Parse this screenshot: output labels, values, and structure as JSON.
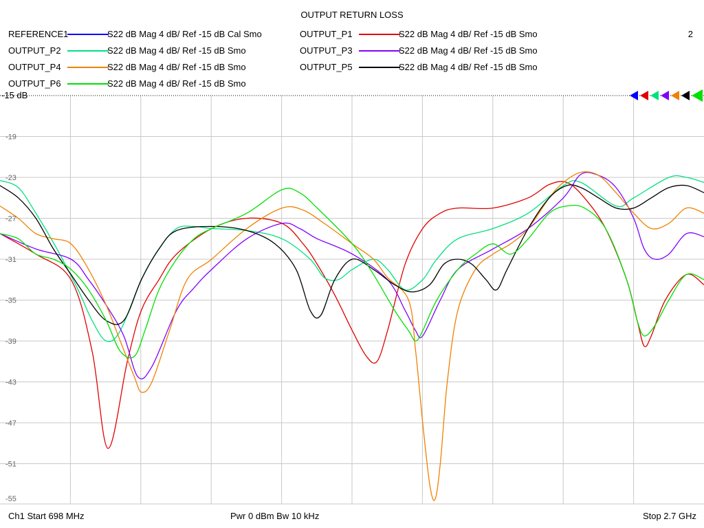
{
  "chart_data": {
    "type": "line",
    "title": "OUTPUT RETURN LOSS",
    "channel_number": "2",
    "ref_label": "-15 dB",
    "y_tick_labels": [
      "-19",
      "-23",
      "-27",
      "-31",
      "-35",
      "-39",
      "-43",
      "-47",
      "-51",
      "-55"
    ],
    "y_ticks": [
      -19,
      -23,
      -27,
      -31,
      -35,
      -39,
      -43,
      -47,
      -51,
      -55
    ],
    "ylim": [
      -55.5,
      -15
    ],
    "xlim": [
      698,
      2700
    ],
    "x_unit": "MHz",
    "grid": true,
    "series": [
      {
        "name": "REFERENCE1",
        "desc": "S22  dB Mag  4 dB/ Ref -15 dB  Cal Smo",
        "color": "#0000ff",
        "points": []
      },
      {
        "name": "OUTPUT_P1",
        "desc": "S22  dB Mag  4 dB/ Ref -15 dB  Smo",
        "color": "#e00000",
        "points": [
          [
            698,
            -28.5
          ],
          [
            800,
            -30.5
          ],
          [
            900,
            -33
          ],
          [
            960,
            -40
          ],
          [
            1005,
            -49.5
          ],
          [
            1060,
            -41
          ],
          [
            1100,
            -36
          ],
          [
            1150,
            -33
          ],
          [
            1200,
            -30.5
          ],
          [
            1300,
            -28
          ],
          [
            1400,
            -27
          ],
          [
            1500,
            -27.5
          ],
          [
            1560,
            -29.5
          ],
          [
            1600,
            -31.5
          ],
          [
            1650,
            -34.5
          ],
          [
            1700,
            -38
          ],
          [
            1740,
            -40.5
          ],
          [
            1770,
            -41
          ],
          [
            1800,
            -38
          ],
          [
            1850,
            -31.5
          ],
          [
            1900,
            -28
          ],
          [
            1950,
            -26.5
          ],
          [
            2000,
            -26
          ],
          [
            2100,
            -26
          ],
          [
            2200,
            -25
          ],
          [
            2260,
            -23.7
          ],
          [
            2310,
            -23.5
          ],
          [
            2360,
            -25
          ],
          [
            2420,
            -28
          ],
          [
            2480,
            -33
          ],
          [
            2510,
            -37
          ],
          [
            2530,
            -39.5
          ],
          [
            2550,
            -38.5
          ],
          [
            2590,
            -35
          ],
          [
            2650,
            -32.5
          ],
          [
            2700,
            -33.5
          ]
        ]
      },
      {
        "name": "OUTPUT_P2",
        "desc": "S22  dB Mag  4 dB/ Ref -15 dB  Smo",
        "color": "#00e080",
        "points": [
          [
            698,
            -23.3
          ],
          [
            750,
            -24
          ],
          [
            800,
            -26.5
          ],
          [
            860,
            -30
          ],
          [
            920,
            -34
          ],
          [
            960,
            -37
          ],
          [
            1000,
            -39
          ],
          [
            1040,
            -38
          ],
          [
            1100,
            -33
          ],
          [
            1150,
            -30
          ],
          [
            1200,
            -28
          ],
          [
            1250,
            -27.8
          ],
          [
            1300,
            -28
          ],
          [
            1400,
            -28.2
          ],
          [
            1500,
            -29
          ],
          [
            1580,
            -31
          ],
          [
            1620,
            -32.8
          ],
          [
            1660,
            -33
          ],
          [
            1700,
            -32
          ],
          [
            1760,
            -31
          ],
          [
            1800,
            -32
          ],
          [
            1850,
            -34
          ],
          [
            1900,
            -33
          ],
          [
            1940,
            -31
          ],
          [
            2000,
            -29
          ],
          [
            2100,
            -28
          ],
          [
            2200,
            -26.5
          ],
          [
            2300,
            -23.8
          ],
          [
            2350,
            -23.5
          ],
          [
            2450,
            -25.8
          ],
          [
            2500,
            -25
          ],
          [
            2600,
            -23
          ],
          [
            2650,
            -23
          ],
          [
            2700,
            -23.5
          ]
        ]
      },
      {
        "name": "OUTPUT_P3",
        "desc": "S22  dB Mag  4 dB/ Ref -15 dB  Smo",
        "color": "#8000ff",
        "points": [
          [
            698,
            -28.5
          ],
          [
            800,
            -30
          ],
          [
            900,
            -31
          ],
          [
            950,
            -33
          ],
          [
            1000,
            -35.5
          ],
          [
            1050,
            -38.5
          ],
          [
            1090,
            -42.5
          ],
          [
            1130,
            -41.5
          ],
          [
            1200,
            -36
          ],
          [
            1250,
            -33.8
          ],
          [
            1300,
            -32
          ],
          [
            1400,
            -29
          ],
          [
            1500,
            -27.5
          ],
          [
            1550,
            -28
          ],
          [
            1600,
            -29
          ],
          [
            1700,
            -30.5
          ],
          [
            1800,
            -33
          ],
          [
            1850,
            -36
          ],
          [
            1880,
            -38
          ],
          [
            1900,
            -38.5
          ],
          [
            1950,
            -35
          ],
          [
            2000,
            -32
          ],
          [
            2100,
            -30
          ],
          [
            2200,
            -28
          ],
          [
            2300,
            -25
          ],
          [
            2350,
            -22.7
          ],
          [
            2400,
            -22.8
          ],
          [
            2450,
            -24
          ],
          [
            2500,
            -27
          ],
          [
            2530,
            -30
          ],
          [
            2560,
            -31
          ],
          [
            2600,
            -30.5
          ],
          [
            2650,
            -28.5
          ],
          [
            2700,
            -28.8
          ]
        ]
      },
      {
        "name": "OUTPUT_P4",
        "desc": "S22  dB Mag  4 dB/ Ref -15 dB  Smo",
        "color": "#f08000",
        "points": [
          [
            698,
            -25.8
          ],
          [
            750,
            -27
          ],
          [
            800,
            -28.5
          ],
          [
            850,
            -29
          ],
          [
            900,
            -29.5
          ],
          [
            950,
            -32
          ],
          [
            1000,
            -35.5
          ],
          [
            1040,
            -39
          ],
          [
            1080,
            -42.5
          ],
          [
            1100,
            -44
          ],
          [
            1130,
            -43
          ],
          [
            1180,
            -38
          ],
          [
            1230,
            -33
          ],
          [
            1300,
            -31
          ],
          [
            1400,
            -28
          ],
          [
            1500,
            -26
          ],
          [
            1560,
            -26.2
          ],
          [
            1620,
            -27.5
          ],
          [
            1700,
            -29.5
          ],
          [
            1760,
            -31
          ],
          [
            1800,
            -32.8
          ],
          [
            1860,
            -35
          ],
          [
            1880,
            -40
          ],
          [
            1900,
            -47
          ],
          [
            1920,
            -53
          ],
          [
            1935,
            -54.5
          ],
          [
            1950,
            -51
          ],
          [
            1970,
            -43
          ],
          [
            2000,
            -36
          ],
          [
            2050,
            -32
          ],
          [
            2100,
            -30.5
          ],
          [
            2150,
            -29.5
          ],
          [
            2200,
            -28
          ],
          [
            2260,
            -25
          ],
          [
            2300,
            -23.5
          ],
          [
            2350,
            -22.5
          ],
          [
            2400,
            -22.8
          ],
          [
            2450,
            -24.5
          ],
          [
            2500,
            -26.5
          ],
          [
            2550,
            -28
          ],
          [
            2600,
            -27.5
          ],
          [
            2650,
            -26
          ],
          [
            2700,
            -26.5
          ]
        ]
      },
      {
        "name": "OUTPUT_P5",
        "desc": "S22  dB Mag  4 dB/ Ref -15 dB  Smo",
        "color": "#000000",
        "points": [
          [
            698,
            -23.8
          ],
          [
            750,
            -25
          ],
          [
            800,
            -27
          ],
          [
            850,
            -30
          ],
          [
            900,
            -32.5
          ],
          [
            950,
            -35
          ],
          [
            1000,
            -37
          ],
          [
            1050,
            -37
          ],
          [
            1100,
            -33
          ],
          [
            1150,
            -30
          ],
          [
            1200,
            -28.2
          ],
          [
            1300,
            -27.8
          ],
          [
            1400,
            -28.2
          ],
          [
            1480,
            -29.5
          ],
          [
            1540,
            -32
          ],
          [
            1580,
            -36
          ],
          [
            1610,
            -36.5
          ],
          [
            1650,
            -33
          ],
          [
            1700,
            -31
          ],
          [
            1760,
            -32
          ],
          [
            1820,
            -33.5
          ],
          [
            1870,
            -34.2
          ],
          [
            1920,
            -33.5
          ],
          [
            1960,
            -31.5
          ],
          [
            2000,
            -31
          ],
          [
            2040,
            -31.5
          ],
          [
            2080,
            -33
          ],
          [
            2110,
            -34
          ],
          [
            2140,
            -32
          ],
          [
            2200,
            -28
          ],
          [
            2260,
            -25
          ],
          [
            2310,
            -23.8
          ],
          [
            2350,
            -24
          ],
          [
            2400,
            -25
          ],
          [
            2450,
            -26
          ],
          [
            2500,
            -26
          ],
          [
            2550,
            -25
          ],
          [
            2600,
            -24
          ],
          [
            2650,
            -23.8
          ],
          [
            2700,
            -24.5
          ]
        ]
      },
      {
        "name": "OUTPUT_P6",
        "desc": "S22  dB Mag  4 dB/ Ref -15 dB  Smo",
        "color": "#00e000",
        "points": [
          [
            698,
            -28.5
          ],
          [
            750,
            -29
          ],
          [
            800,
            -30.5
          ],
          [
            850,
            -31
          ],
          [
            900,
            -32
          ],
          [
            950,
            -34
          ],
          [
            1000,
            -37
          ],
          [
            1040,
            -40
          ],
          [
            1080,
            -40.5
          ],
          [
            1110,
            -38
          ],
          [
            1150,
            -34
          ],
          [
            1200,
            -31
          ],
          [
            1250,
            -29
          ],
          [
            1300,
            -28
          ],
          [
            1400,
            -26.5
          ],
          [
            1500,
            -24.2
          ],
          [
            1550,
            -24.5
          ],
          [
            1600,
            -26
          ],
          [
            1700,
            -29.5
          ],
          [
            1760,
            -32.5
          ],
          [
            1820,
            -36
          ],
          [
            1860,
            -38
          ],
          [
            1880,
            -39
          ],
          [
            1900,
            -38
          ],
          [
            1940,
            -35
          ],
          [
            2000,
            -32
          ],
          [
            2050,
            -30.5
          ],
          [
            2100,
            -29.5
          ],
          [
            2150,
            -30.5
          ],
          [
            2200,
            -29
          ],
          [
            2260,
            -26.5
          ],
          [
            2310,
            -25.8
          ],
          [
            2360,
            -26
          ],
          [
            2420,
            -28
          ],
          [
            2480,
            -33
          ],
          [
            2510,
            -37
          ],
          [
            2530,
            -38.5
          ],
          [
            2560,
            -37.5
          ],
          [
            2600,
            -35
          ],
          [
            2650,
            -32.5
          ],
          [
            2700,
            -33
          ]
        ]
      }
    ]
  },
  "footer": {
    "left": "Ch1  Start  698 MHz",
    "center": "Pwr  0 dBm  Bw  10 kHz",
    "right": "Stop  2.7 GHz"
  }
}
